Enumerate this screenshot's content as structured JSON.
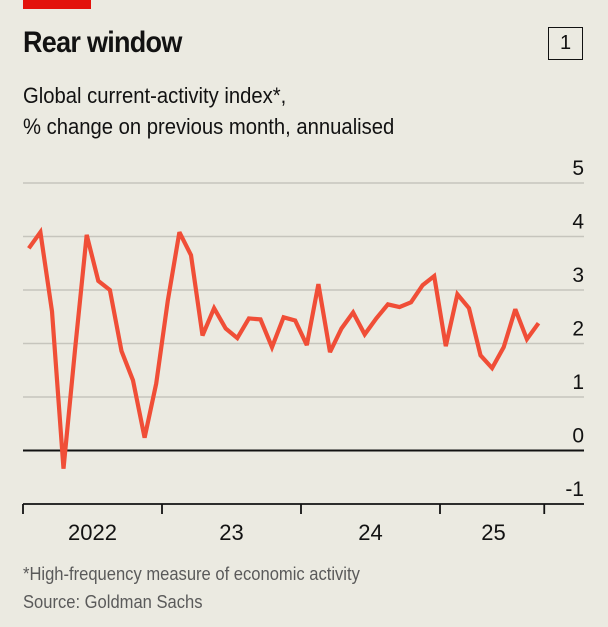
{
  "header": {
    "title": "Rear window",
    "chart_number": "1",
    "subtitle_line1": "Global current-activity index*,",
    "subtitle_line2": "% change on previous month, annualised"
  },
  "footer": {
    "note": "*High-frequency measure of economic activity",
    "source": "Source: Goldman Sachs"
  },
  "colors": {
    "accent_bar": "#e3120b",
    "series": "#f04e37",
    "background": "#ebeae1",
    "gridline": "#c6c5bd",
    "axis": "#121212"
  },
  "chart_data": {
    "type": "line",
    "title": "Rear window",
    "subtitle": "Global current-activity index*, % change on previous month, annualised",
    "xlabel": "",
    "ylabel": "",
    "ylim": [
      -1,
      5
    ],
    "yticks": [
      5,
      4,
      3,
      2,
      1,
      0,
      -1
    ],
    "ytick_labels": [
      "5",
      "4",
      "3",
      "2",
      "1",
      "0",
      "-1"
    ],
    "y_axis_side": "right",
    "grid": true,
    "x_range_months": [
      "2022-01",
      "2025-10"
    ],
    "xtick_boundaries": [
      "2022-01",
      "2023-01",
      "2024-01",
      "2025-01",
      "2025-10"
    ],
    "xtick_labels": [
      {
        "label": "2022",
        "year": 2022
      },
      {
        "label": "23",
        "year": 2023
      },
      {
        "label": "24",
        "year": 2024
      },
      {
        "label": "25",
        "year": 2025
      }
    ],
    "series": [
      {
        "name": "Global current-activity index",
        "x": [
          "2022-01",
          "2022-02",
          "2022-03",
          "2022-04",
          "2022-05",
          "2022-06",
          "2022-07",
          "2022-08",
          "2022-09",
          "2022-10",
          "2022-11",
          "2022-12",
          "2023-01",
          "2023-02",
          "2023-03",
          "2023-04",
          "2023-05",
          "2023-06",
          "2023-07",
          "2023-08",
          "2023-09",
          "2023-10",
          "2023-11",
          "2023-12",
          "2024-01",
          "2024-02",
          "2024-03",
          "2024-04",
          "2024-05",
          "2024-06",
          "2024-07",
          "2024-08",
          "2024-09",
          "2024-10",
          "2024-11",
          "2024-12",
          "2025-01",
          "2025-02",
          "2025-03",
          "2025-04",
          "2025-05",
          "2025-06",
          "2025-07",
          "2025-08",
          "2025-09"
        ],
        "values": [
          3.78,
          4.08,
          2.6,
          -0.34,
          1.9,
          4.03,
          3.17,
          3.0,
          1.86,
          1.31,
          0.24,
          1.25,
          2.8,
          4.08,
          3.65,
          2.15,
          2.66,
          2.28,
          2.1,
          2.47,
          2.45,
          1.93,
          2.49,
          2.43,
          1.97,
          3.11,
          1.84,
          2.28,
          2.58,
          2.17,
          2.47,
          2.73,
          2.68,
          2.77,
          3.09,
          3.26,
          1.95,
          2.92,
          2.66,
          1.78,
          1.54,
          1.93,
          2.64,
          2.08,
          2.38
        ]
      }
    ],
    "legend": "none",
    "footnote": "*High-frequency measure of economic activity",
    "source": "Source: Goldman Sachs"
  }
}
